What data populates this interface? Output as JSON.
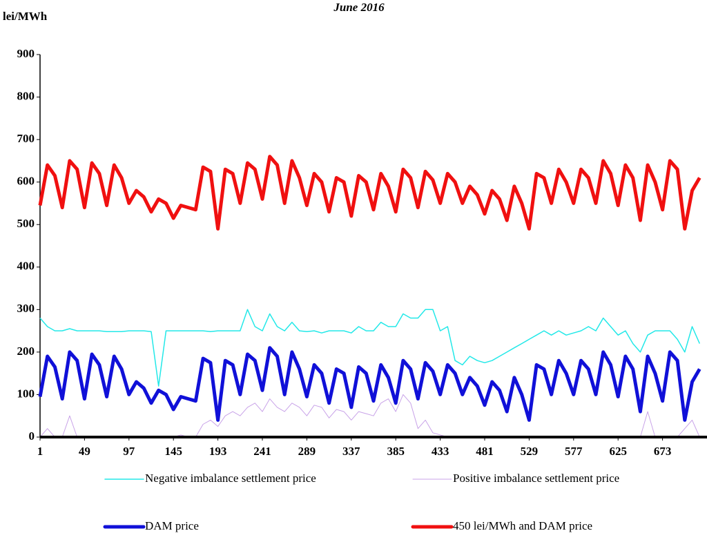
{
  "chart_data": {
    "type": "line",
    "title": "June 2016",
    "y_label": "lei/MWh",
    "x": [
      1,
      9,
      17,
      25,
      33,
      41,
      49,
      57,
      65,
      73,
      81,
      89,
      97,
      105,
      113,
      121,
      129,
      137,
      145,
      153,
      161,
      169,
      177,
      185,
      193,
      201,
      209,
      217,
      225,
      233,
      241,
      249,
      257,
      265,
      273,
      281,
      289,
      297,
      305,
      313,
      321,
      329,
      337,
      345,
      353,
      361,
      369,
      377,
      385,
      393,
      401,
      409,
      417,
      425,
      433,
      441,
      449,
      457,
      465,
      473,
      481,
      489,
      497,
      505,
      513,
      521,
      529,
      537,
      545,
      553,
      561,
      569,
      577,
      585,
      593,
      601,
      609,
      617,
      625,
      633,
      641,
      649,
      657,
      665,
      673,
      681,
      689,
      697,
      705,
      713
    ],
    "xlim": [
      1,
      721
    ],
    "xticks": [
      1,
      49,
      97,
      145,
      193,
      241,
      289,
      337,
      385,
      433,
      481,
      529,
      577,
      625,
      673
    ],
    "ylim": [
      0,
      900
    ],
    "yticks": [
      0,
      100,
      200,
      300,
      400,
      500,
      600,
      700,
      800,
      900
    ],
    "series": [
      {
        "name": "Negative imbalance settlement price",
        "color": "#22e8e8",
        "line_width": 1.5,
        "values": [
          280,
          260,
          250,
          250,
          255,
          250,
          250,
          250,
          250,
          248,
          248,
          248,
          250,
          250,
          250,
          248,
          120,
          250,
          250,
          250,
          250,
          250,
          250,
          248,
          250,
          250,
          250,
          250,
          300,
          260,
          250,
          290,
          260,
          250,
          270,
          250,
          248,
          250,
          245,
          250,
          250,
          250,
          245,
          260,
          250,
          250,
          270,
          260,
          260,
          290,
          280,
          280,
          300,
          300,
          250,
          260,
          180,
          170,
          190,
          180,
          175,
          180,
          190,
          200,
          210,
          220,
          230,
          240,
          250,
          240,
          250,
          240,
          245,
          250,
          260,
          250,
          280,
          260,
          240,
          250,
          220,
          200,
          240,
          250,
          250,
          250,
          230,
          200,
          260,
          220
        ]
      },
      {
        "name": "Positive imbalance settlement price",
        "color": "#c8a2e8",
        "line_width": 1,
        "values": [
          0,
          20,
          0,
          0,
          50,
          0,
          0,
          0,
          0,
          0,
          0,
          0,
          0,
          0,
          0,
          0,
          0,
          0,
          0,
          5,
          0,
          0,
          30,
          40,
          25,
          50,
          60,
          50,
          70,
          80,
          60,
          90,
          70,
          60,
          80,
          70,
          50,
          75,
          70,
          45,
          65,
          60,
          40,
          60,
          55,
          50,
          80,
          90,
          60,
          100,
          80,
          20,
          40,
          10,
          5,
          0,
          0,
          0,
          0,
          0,
          0,
          0,
          0,
          0,
          0,
          0,
          0,
          0,
          0,
          0,
          0,
          0,
          0,
          0,
          0,
          0,
          0,
          0,
          0,
          0,
          0,
          0,
          60,
          0,
          0,
          0,
          0,
          20,
          40,
          0
        ]
      },
      {
        "name": "DAM price",
        "color": "#1010d8",
        "line_width": 5,
        "values": [
          95,
          190,
          165,
          90,
          200,
          180,
          90,
          195,
          170,
          95,
          190,
          160,
          100,
          130,
          115,
          80,
          110,
          100,
          65,
          95,
          90,
          85,
          185,
          175,
          40,
          180,
          170,
          100,
          195,
          180,
          110,
          210,
          190,
          100,
          200,
          160,
          95,
          170,
          150,
          80,
          160,
          150,
          70,
          165,
          150,
          85,
          170,
          140,
          80,
          180,
          160,
          90,
          175,
          155,
          100,
          170,
          150,
          100,
          140,
          120,
          75,
          130,
          110,
          60,
          140,
          100,
          40,
          170,
          160,
          100,
          180,
          150,
          100,
          180,
          160,
          100,
          200,
          170,
          95,
          190,
          160,
          60,
          190,
          150,
          85,
          200,
          180,
          40,
          130,
          160
        ]
      },
      {
        "name": "450 lei/MWh and DAM price",
        "color": "#f01010",
        "line_width": 5,
        "values": [
          545,
          640,
          615,
          540,
          650,
          630,
          540,
          645,
          620,
          545,
          640,
          610,
          550,
          580,
          565,
          530,
          560,
          550,
          515,
          545,
          540,
          535,
          635,
          625,
          490,
          630,
          620,
          550,
          645,
          630,
          560,
          660,
          640,
          550,
          650,
          610,
          545,
          620,
          600,
          530,
          610,
          600,
          520,
          615,
          600,
          535,
          620,
          590,
          530,
          630,
          610,
          540,
          625,
          605,
          550,
          620,
          600,
          550,
          590,
          570,
          525,
          580,
          560,
          510,
          590,
          550,
          490,
          620,
          610,
          550,
          630,
          600,
          550,
          630,
          610,
          550,
          650,
          620,
          545,
          640,
          610,
          510,
          640,
          600,
          535,
          650,
          630,
          490,
          580,
          610
        ]
      }
    ]
  }
}
